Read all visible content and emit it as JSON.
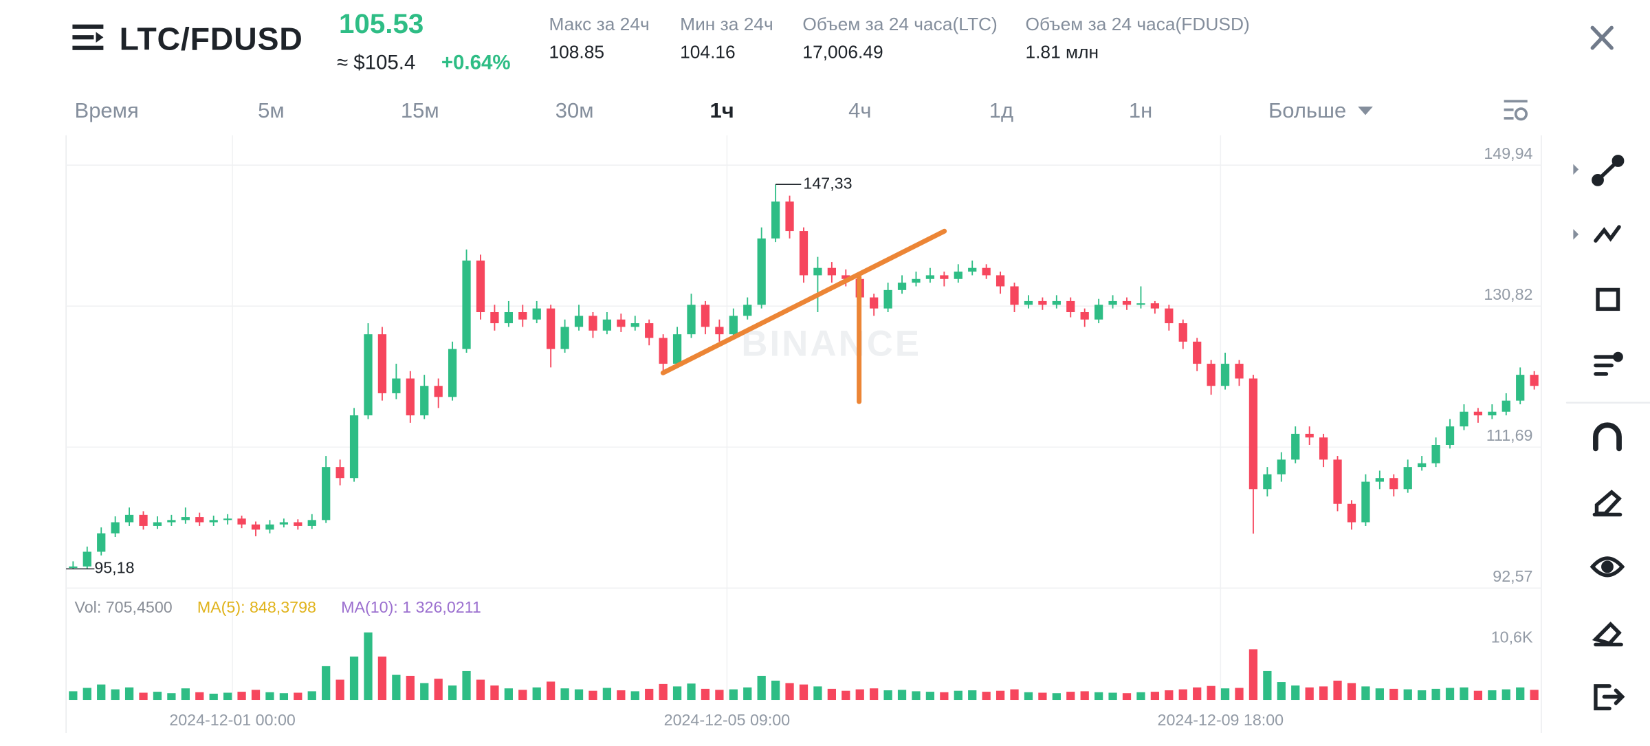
{
  "header": {
    "pair": "LTC/FDUSD",
    "price": "105.53",
    "usd_price": "≈ $105.4",
    "change": "+0.64%",
    "stats": [
      {
        "label": "Макс за 24ч",
        "value": "108.85"
      },
      {
        "label": "Мин за 24ч",
        "value": "104.16"
      },
      {
        "label": "Объем за 24 часа(LTC)",
        "value": "17,006.49"
      },
      {
        "label": "Объем за 24 часа(FDUSD)",
        "value": "1.81 млн"
      }
    ]
  },
  "tabs": {
    "items": [
      "Время",
      "5м",
      "15м",
      "30м",
      "1ч",
      "4ч",
      "1д",
      "1н",
      "Больше"
    ],
    "active": 4
  },
  "chart_data": {
    "type": "candlestick",
    "watermark": "BINANCE",
    "up_color": "#2ebd85",
    "down_color": "#f6465d",
    "grid": true,
    "ylim": [
      92.57,
      153.99
    ],
    "yticks": [
      {
        "value": 149.94,
        "label": "149,94"
      },
      {
        "value": 130.82,
        "label": "130,82"
      },
      {
        "value": 111.69,
        "label": "111,69"
      },
      {
        "value": 92.57,
        "label": "92,57"
      }
    ],
    "xlim": [
      0,
      105
    ],
    "xticks": [
      {
        "value": 11.84,
        "label": "2024-12-01 00:00"
      },
      {
        "value": 47.04,
        "label": "2024-12-05 09:00"
      },
      {
        "value": 82.17,
        "label": "2024-12-09 18:00"
      }
    ],
    "high_marker": {
      "value": 147.33,
      "label": "147,33",
      "index": 50
    },
    "low_marker": {
      "value": 95.18,
      "label": "95,18",
      "index": 0
    },
    "candles": [
      [
        95.3,
        96.2,
        95.18,
        95.5
      ],
      [
        95.5,
        98.2,
        95.2,
        97.5
      ],
      [
        97.5,
        100.8,
        97,
        100
      ],
      [
        100,
        102.3,
        99.5,
        101.5
      ],
      [
        101.5,
        103.5,
        101,
        102.5
      ],
      [
        102.5,
        103,
        100.5,
        101
      ],
      [
        101,
        102.3,
        100.6,
        101.5
      ],
      [
        101.5,
        102.5,
        101,
        101.8
      ],
      [
        101.8,
        103.5,
        101.3,
        102.2
      ],
      [
        102.2,
        102.8,
        101,
        101.5
      ],
      [
        101.5,
        102.4,
        101,
        101.8
      ],
      [
        101.8,
        102.6,
        101.2,
        102
      ],
      [
        102,
        102.4,
        100.7,
        101.2
      ],
      [
        101.2,
        101.6,
        99.6,
        100.5
      ],
      [
        100.5,
        101.8,
        100,
        101.2
      ],
      [
        101.2,
        102,
        100.8,
        101.5
      ],
      [
        101.5,
        101.9,
        100.5,
        101
      ],
      [
        101,
        102.6,
        100.6,
        101.8
      ],
      [
        101.8,
        110.5,
        101.4,
        109
      ],
      [
        109,
        110,
        106.5,
        107.5
      ],
      [
        107.5,
        117,
        107,
        116
      ],
      [
        116,
        128.5,
        115.5,
        127
      ],
      [
        127,
        128,
        118,
        119
      ],
      [
        119,
        123,
        118.2,
        121
      ],
      [
        121,
        122,
        115,
        116
      ],
      [
        116,
        121.5,
        115.5,
        120
      ],
      [
        120,
        121,
        117,
        118.5
      ],
      [
        118.5,
        126,
        118,
        125
      ],
      [
        125,
        138.5,
        124.5,
        137
      ],
      [
        137,
        137.8,
        129,
        130
      ],
      [
        130,
        131,
        127.5,
        128.5
      ],
      [
        128.5,
        131.5,
        128,
        130
      ],
      [
        130,
        131,
        128,
        129
      ],
      [
        129,
        131.5,
        128.5,
        130.5
      ],
      [
        130.5,
        131,
        122.5,
        125
      ],
      [
        125,
        129,
        124.5,
        128
      ],
      [
        128,
        131,
        127.5,
        129.5
      ],
      [
        129.5,
        130,
        126.5,
        127.5
      ],
      [
        127.5,
        130,
        127,
        129
      ],
      [
        129,
        129.8,
        127.3,
        128
      ],
      [
        128,
        129.5,
        127.5,
        128.5
      ],
      [
        128.5,
        129,
        125.5,
        126.5
      ],
      [
        126.5,
        127,
        122,
        123
      ],
      [
        123,
        128,
        122.5,
        127
      ],
      [
        127,
        132.5,
        126.5,
        131
      ],
      [
        131,
        131.5,
        127,
        128
      ],
      [
        128,
        129,
        126,
        127
      ],
      [
        127,
        130.5,
        126.5,
        129.5
      ],
      [
        129.5,
        132,
        129,
        131
      ],
      [
        131,
        141.5,
        130.5,
        140
      ],
      [
        140,
        147.33,
        139.5,
        145
      ],
      [
        145,
        145.8,
        140,
        141
      ],
      [
        141,
        141.5,
        134,
        135
      ],
      [
        135,
        137.5,
        130,
        136
      ],
      [
        136,
        136.8,
        134,
        135
      ],
      [
        135,
        135.8,
        133.5,
        134.5
      ],
      [
        134.5,
        135,
        131,
        132
      ],
      [
        132,
        132.5,
        129.5,
        130.5
      ],
      [
        130.5,
        134,
        130,
        133
      ],
      [
        133,
        135,
        132.5,
        134
      ],
      [
        134,
        135.5,
        133.5,
        134.5
      ],
      [
        134.5,
        136,
        134,
        135
      ],
      [
        135,
        135.5,
        133.5,
        134.5
      ],
      [
        134.5,
        136.5,
        134,
        135.5
      ],
      [
        135.5,
        137,
        135,
        136
      ],
      [
        136,
        136.5,
        134.5,
        135
      ],
      [
        135,
        135.5,
        132.5,
        133.5
      ],
      [
        133.5,
        134,
        130,
        131
      ],
      [
        131,
        132.3,
        130.5,
        131.5
      ],
      [
        131.5,
        132,
        130.3,
        131
      ],
      [
        131,
        132.3,
        130.5,
        131.5
      ],
      [
        131.5,
        132,
        129.3,
        130
      ],
      [
        130,
        130.5,
        128,
        129
      ],
      [
        129,
        131.8,
        128.5,
        131
      ],
      [
        131,
        132.3,
        130.5,
        131.5
      ],
      [
        131.5,
        132,
        130.3,
        131
      ],
      [
        131,
        133.5,
        130.5,
        131.2
      ],
      [
        131.2,
        131.5,
        129.8,
        130.5
      ],
      [
        130.5,
        131,
        127.5,
        128.5
      ],
      [
        128.5,
        129,
        125,
        126
      ],
      [
        126,
        126.5,
        122,
        123
      ],
      [
        123,
        123.5,
        118.8,
        120
      ],
      [
        120,
        124.5,
        119.5,
        123
      ],
      [
        123,
        123.5,
        120,
        121
      ],
      [
        121,
        121.5,
        99.96,
        106
      ],
      [
        106,
        109,
        105,
        108
      ],
      [
        108,
        111,
        107,
        110
      ],
      [
        110,
        114.5,
        109.5,
        113.5
      ],
      [
        113.5,
        114.5,
        112,
        113
      ],
      [
        113,
        113.5,
        109,
        110
      ],
      [
        110,
        110.5,
        103,
        104
      ],
      [
        104,
        104.5,
        100.5,
        101.5
      ],
      [
        101.5,
        108,
        101,
        107
      ],
      [
        107,
        108.5,
        106,
        107.5
      ],
      [
        107.5,
        108,
        105,
        106
      ],
      [
        106,
        110,
        105.5,
        109
      ],
      [
        109,
        110.5,
        108.5,
        109.5
      ],
      [
        109.5,
        113,
        109,
        112
      ],
      [
        112,
        115.5,
        111.5,
        114.5
      ],
      [
        114.5,
        117.5,
        114,
        116.5
      ],
      [
        116.5,
        117,
        115,
        116
      ],
      [
        116,
        117.5,
        115.5,
        116.5
      ],
      [
        116.5,
        119,
        116,
        118
      ],
      [
        118,
        122.5,
        117.5,
        121.5
      ],
      [
        121.5,
        122,
        119.5,
        120
      ]
    ],
    "volume": {
      "ylim": [
        0,
        23190
      ],
      "yticks": [
        {
          "value": 10600,
          "label": "10,6K"
        }
      ],
      "legend": [
        {
          "text": "Vol: 705,4500",
          "color": "#8a8f98"
        },
        {
          "text": "MA(5): 848,3798",
          "color": "#e0b31c"
        },
        {
          "text": "MA(10): 1 326,0211",
          "color": "#9b6fcf"
        }
      ],
      "values": [
        1800,
        2500,
        3200,
        2200,
        2600,
        1500,
        1700,
        1400,
        2400,
        1600,
        1300,
        1500,
        1700,
        2100,
        1600,
        1400,
        1500,
        1800,
        7000,
        4200,
        9000,
        14000,
        9000,
        5200,
        5000,
        3500,
        4400,
        3000,
        6000,
        4200,
        3000,
        2400,
        2100,
        2600,
        3800,
        2400,
        2200,
        1900,
        2500,
        2000,
        1800,
        2300,
        3300,
        2800,
        3400,
        2300,
        2100,
        2200,
        2600,
        5000,
        4000,
        3500,
        3200,
        2800,
        2300,
        1900,
        2200,
        2400,
        2000,
        2100,
        1800,
        1700,
        1600,
        1900,
        2000,
        1700,
        1900,
        2200,
        1600,
        1500,
        1400,
        1700,
        1800,
        1600,
        1500,
        1400,
        1600,
        1700,
        2000,
        2200,
        2600,
        2900,
        2400,
        2500,
        10500,
        6000,
        3700,
        3000,
        2600,
        2800,
        4000,
        3500,
        2800,
        2400,
        2300,
        2200,
        2000,
        2300,
        2500,
        2600,
        1900,
        2000,
        2200,
        2600,
        2100
      ]
    }
  }
}
